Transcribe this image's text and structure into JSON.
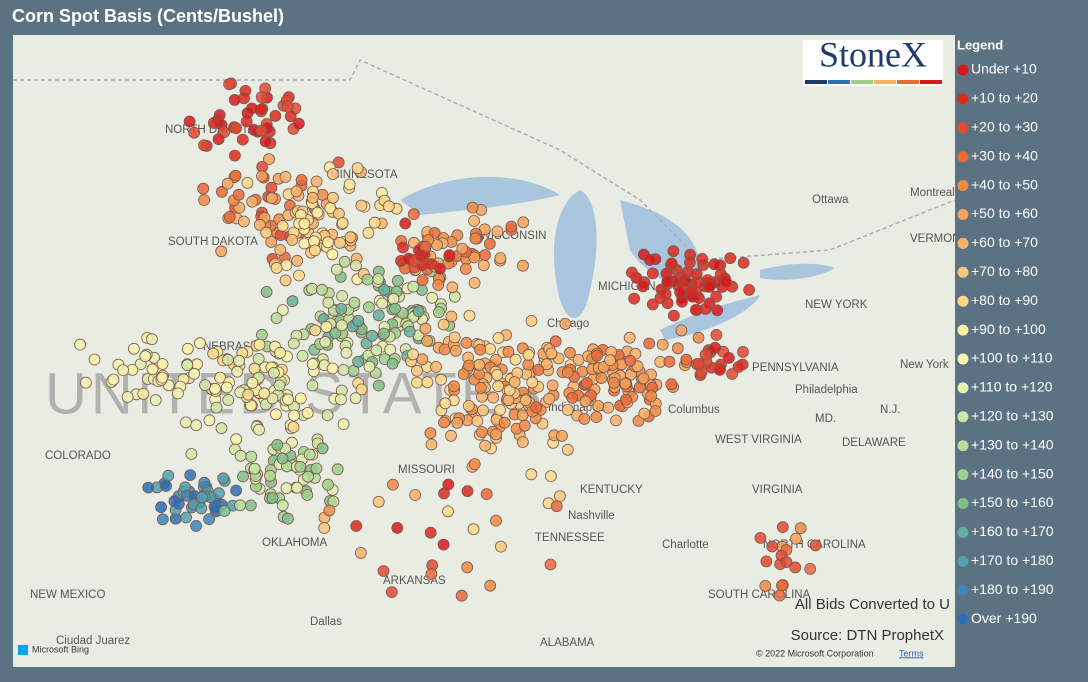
{
  "header": {
    "title": "Corn Spot Basis (Cents/Bushel)"
  },
  "logo": "StoneX",
  "legend": {
    "title": "Legend",
    "items": [
      {
        "label": "Under +10",
        "color": "#d7191c"
      },
      {
        "label": "+10 to +20",
        "color": "#db2a1e"
      },
      {
        "label": "+20 to +30",
        "color": "#e34a33"
      },
      {
        "label": "+30 to +40",
        "color": "#ea6a3a"
      },
      {
        "label": "+40 to +50",
        "color": "#f08a44"
      },
      {
        "label": "+50 to +60",
        "color": "#f5a25a"
      },
      {
        "label": "+60 to +70",
        "color": "#f8b36a"
      },
      {
        "label": "+70 to +80",
        "color": "#fac77a"
      },
      {
        "label": "+80 to +90",
        "color": "#fbd98a"
      },
      {
        "label": "+90 to +100",
        "color": "#fdeea0"
      },
      {
        "label": "+100 to +110",
        "color": "#f5f5b0"
      },
      {
        "label": "+110 to +120",
        "color": "#e4efb0"
      },
      {
        "label": "+120 to +130",
        "color": "#cde6a4"
      },
      {
        "label": "+130 to +140",
        "color": "#b5dc98"
      },
      {
        "label": "+140 to +150",
        "color": "#9dd08c"
      },
      {
        "label": "+150 to +160",
        "color": "#80bf8a"
      },
      {
        "label": "+160 to +170",
        "color": "#66b0a0"
      },
      {
        "label": "+170 to +180",
        "color": "#52a0b0"
      },
      {
        "label": "+180 to +190",
        "color": "#3f86b8"
      },
      {
        "label": "Over +190",
        "color": "#2c6fb5"
      }
    ]
  },
  "map": {
    "labels": [
      "NORTH DAKOTA",
      "MINNESOTA",
      "SOUTH DAKOTA",
      "WISCONSIN",
      "NEBRASKA",
      "COLORADO",
      "MISSOURI",
      "KENTUCKY",
      "TENNESSEE",
      "OKLAHOMA",
      "ARKANSAS",
      "NEW MEXICO",
      "Dallas",
      "ALABAMA",
      "Charlotte",
      "NORTH CAROLINA",
      "SOUTH CAROLINA",
      "VIRGINIA",
      "WEST VIRGINIA",
      "Columbus",
      "Indianapolis",
      "Chicago",
      "Nashville",
      "PENNSYLVANIA",
      "Philadelphia",
      "NEW YORK",
      "New York",
      "Ottawa",
      "Montreal",
      "VERMONT",
      "MD.",
      "DELAWARE",
      "N.J.",
      "Ciudad Juarez",
      "MICHIGAN"
    ],
    "watermark": "UNITED STATES",
    "note": "All Bids Converted to U",
    "source": "Source: DTN ProphetX",
    "copyright": "© 2022 Microsoft Corporation",
    "terms": "Terms",
    "bing": "Microsoft Bing"
  }
}
